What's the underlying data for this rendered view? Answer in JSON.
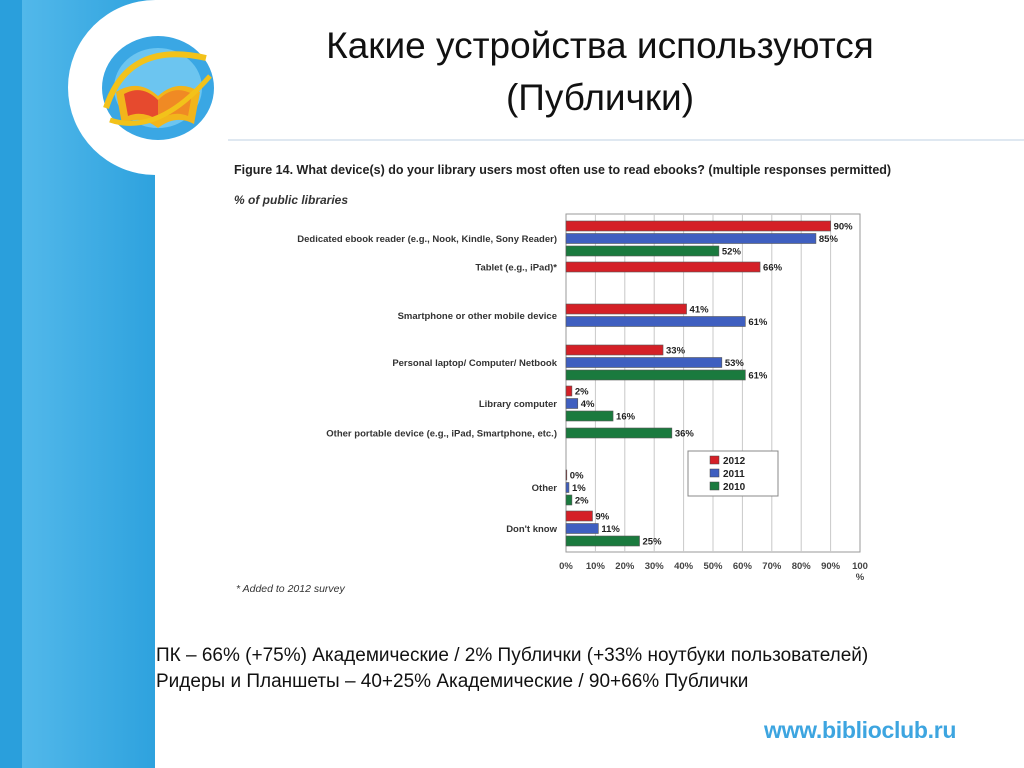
{
  "slide": {
    "title_line1": "Какие устройства используются",
    "title_line2": "(Публички)",
    "website": "www.biblioclub.ru",
    "summary_line1": "ПК – 66% (+75%) Академические / 2% Публички (+33% ноутбуки пользователей)",
    "summary_line2": "Ридеры и Планшеты – 40+25% Академические / 90+66% Публички"
  },
  "figure": {
    "title": "Figure 14. What device(s) do your library users most often use to read ebooks? (multiple responses permitted)",
    "subtitle": "% of public libraries",
    "footnote": "* Added to 2012 survey"
  },
  "chart_data": {
    "type": "bar",
    "orientation": "horizontal",
    "categories": [
      "Dedicated ebook reader (e.g., Nook, Kindle, Sony Reader)",
      "Tablet (e.g., iPad)*",
      "Smartphone or other mobile device",
      "Personal laptop/ Computer/ Netbook",
      "Library computer",
      "Other portable device (e.g., iPad, Smartphone, etc.)",
      "Other",
      "Don't know"
    ],
    "series": [
      {
        "name": "2012",
        "color": "#d42027",
        "values": [
          90,
          66,
          41,
          33,
          2,
          null,
          0,
          9
        ]
      },
      {
        "name": "2011",
        "color": "#3f5fc0",
        "values": [
          85,
          null,
          61,
          53,
          4,
          null,
          1,
          11
        ]
      },
      {
        "name": "2010",
        "color": "#1a7a3e",
        "values": [
          52,
          null,
          null,
          61,
          16,
          36,
          2,
          25
        ]
      }
    ],
    "value_suffix": "%",
    "xlim": [
      0,
      100
    ],
    "xticks": [
      "0%",
      "10%",
      "20%",
      "30%",
      "40%",
      "50%",
      "60%",
      "70%",
      "80%",
      "90%",
      "100"
    ],
    "xlabel": "%",
    "grid": true,
    "legend_position": "right"
  }
}
